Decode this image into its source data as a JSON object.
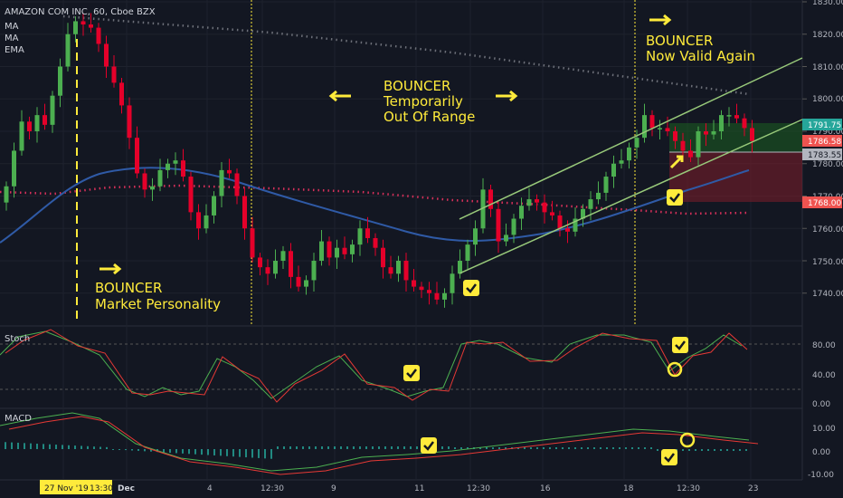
{
  "header": {
    "symbol": "AMAZON COM INC, 60, Cboe BZX",
    "studies": [
      "MA",
      "MA",
      "EMA"
    ]
  },
  "annotations": {
    "market_personality": [
      "BOUNCER",
      "Market Personality"
    ],
    "out_of_range": [
      "BOUNCER",
      "Temporarily",
      "Out Of Range"
    ],
    "valid_again": [
      "BOUNCER",
      "Now Valid Again"
    ]
  },
  "price_axis": {
    "ticks": [
      "1830.00",
      "1820.00",
      "1810.00",
      "1800.00",
      "1790.00",
      "1780.00",
      "1770.00",
      "1760.00",
      "1750.00",
      "1740.00"
    ],
    "price_tags": [
      {
        "text": "1791.75",
        "bg": "#26a69a",
        "fg": "#ffffff"
      },
      {
        "text": "1786.58",
        "bg": "#ef5350",
        "fg": "#ffffff"
      },
      {
        "text": "1783.55",
        "bg": "#b2b5be",
        "fg": "#131722"
      },
      {
        "text": "1768.00",
        "bg": "#ef5350",
        "fg": "#ffffff"
      }
    ]
  },
  "stoch": {
    "label": "Stoch",
    "ticks": [
      "80.00",
      "40.00",
      "0.00"
    ]
  },
  "macd": {
    "label": "MACD",
    "ticks": [
      "10.00",
      "0.00",
      "-10.00"
    ]
  },
  "time_axis": {
    "labels": [
      "Dec",
      "4",
      "12:30",
      "9",
      "11",
      "12:30",
      "16",
      "18",
      "12:30",
      "23"
    ],
    "cursor_label": "27 Nov '19",
    "cursor_time": "13:30"
  },
  "colors": {
    "background": "#131722",
    "up": "#4caf50",
    "down": "#e5002a",
    "ma_blue": "#2f5aa6",
    "ma_dots": "#d7305a",
    "ema_dots": "#6c6f78",
    "channel": "#98c97a",
    "accent": "#ffeb3b",
    "stoch_k": "#4caf50",
    "stoch_d": "#e53935"
  },
  "chart_data": {
    "type": "candlestick",
    "title": "AMAZON COM INC, 60, Cboe BZX",
    "ylim": [
      1733,
      1832
    ],
    "close": [
      1773,
      1784,
      1793,
      1790,
      1795,
      1792,
      1801,
      1810,
      1820,
      1824,
      1823,
      1822,
      1817,
      1810,
      1805,
      1798,
      1788,
      1777,
      1772,
      1773,
      1778,
      1780,
      1781,
      1776,
      1765,
      1760,
      1764,
      1770,
      1778,
      1777,
      1770,
      1760,
      1751,
      1748,
      1746,
      1750,
      1753,
      1745,
      1742,
      1744,
      1750,
      1756,
      1751,
      1754,
      1752,
      1755,
      1760,
      1757,
      1754,
      1748,
      1746,
      1750,
      1744,
      1742,
      1741,
      1740,
      1738,
      1740,
      1746,
      1750,
      1755,
      1760,
      1772,
      1766,
      1756,
      1758,
      1763,
      1767,
      1769,
      1768,
      1765,
      1764,
      1760,
      1759,
      1763,
      1766,
      1769,
      1771,
      1776,
      1780,
      1781,
      1785,
      1788,
      1795,
      1791,
      1791,
      1790,
      1787,
      1784,
      1782,
      1790,
      1789,
      1790,
      1795,
      1795,
      1794,
      1791,
      1787
    ]
  }
}
